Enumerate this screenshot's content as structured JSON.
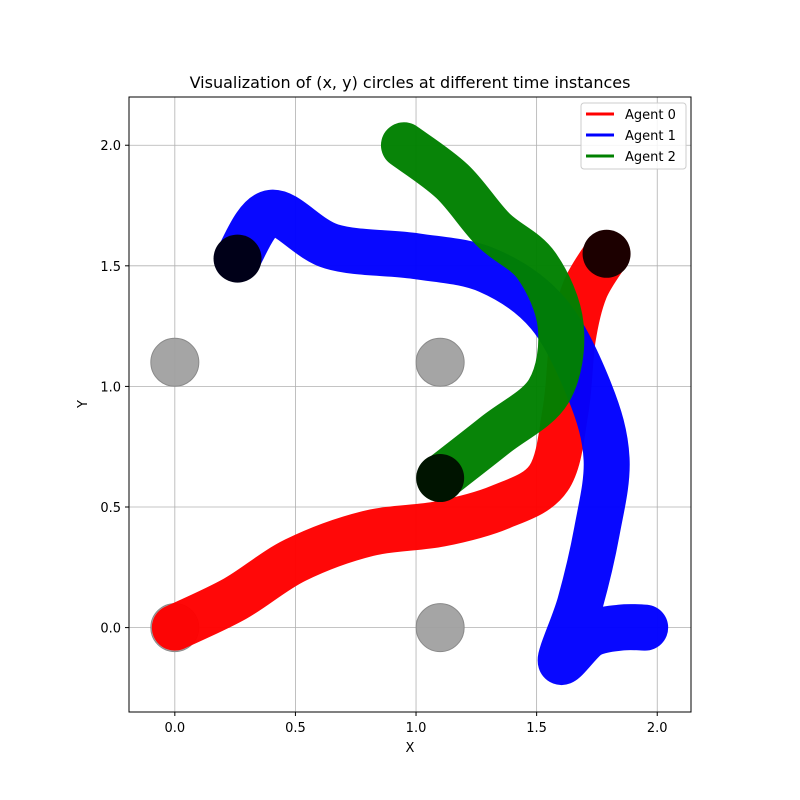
{
  "chart_data": {
    "type": "line",
    "title": "Visualization of (x, y) circles at different time instances",
    "xlabel": "X",
    "ylabel": "Y",
    "xlim": [
      -0.19,
      2.14
    ],
    "ylim": [
      -0.35,
      2.2
    ],
    "xticks": [
      0.0,
      0.5,
      1.0,
      1.5,
      2.0
    ],
    "yticks": [
      0.0,
      0.5,
      1.0,
      1.5,
      2.0
    ],
    "xtick_labels": [
      "0.0",
      "0.5",
      "1.0",
      "1.5",
      "2.0"
    ],
    "ytick_labels": [
      "0.0",
      "0.5",
      "1.0",
      "1.5",
      "2.0"
    ],
    "grid": true,
    "legend_position": "top-right",
    "series": [
      {
        "name": "Agent 0",
        "color": "#ff0000",
        "points": [
          [
            0.0,
            0.0
          ],
          [
            0.25,
            0.12
          ],
          [
            0.5,
            0.28
          ],
          [
            0.8,
            0.39
          ],
          [
            1.1,
            0.43
          ],
          [
            1.35,
            0.5
          ],
          [
            1.55,
            0.62
          ],
          [
            1.62,
            0.9
          ],
          [
            1.65,
            1.2
          ],
          [
            1.7,
            1.4
          ],
          [
            1.79,
            1.55
          ]
        ]
      },
      {
        "name": "Agent 1",
        "color": "#0000ff",
        "points": [
          [
            0.26,
            1.53
          ],
          [
            0.4,
            1.72
          ],
          [
            0.65,
            1.58
          ],
          [
            1.0,
            1.54
          ],
          [
            1.3,
            1.48
          ],
          [
            1.55,
            1.3
          ],
          [
            1.72,
            0.98
          ],
          [
            1.79,
            0.7
          ],
          [
            1.75,
            0.4
          ],
          [
            1.68,
            0.1
          ],
          [
            1.6,
            -0.14
          ],
          [
            1.72,
            -0.03
          ],
          [
            1.85,
            0.0
          ],
          [
            1.95,
            0.0
          ]
        ]
      },
      {
        "name": "Agent 2",
        "color": "#008000",
        "points": [
          [
            0.95,
            2.0
          ],
          [
            1.15,
            1.85
          ],
          [
            1.32,
            1.65
          ],
          [
            1.5,
            1.5
          ],
          [
            1.6,
            1.25
          ],
          [
            1.55,
            0.98
          ],
          [
            1.33,
            0.8
          ],
          [
            1.1,
            0.62
          ]
        ]
      }
    ],
    "end_markers": [
      {
        "x": 1.79,
        "y": 1.55,
        "color": "#1c0000"
      },
      {
        "x": 0.26,
        "y": 1.53,
        "color": "#000018"
      },
      {
        "x": 1.1,
        "y": 0.62,
        "color": "#001400"
      }
    ],
    "obstacles": [
      {
        "x": 0.0,
        "y": 1.1
      },
      {
        "x": 1.1,
        "y": 1.1
      },
      {
        "x": 0.0,
        "y": 0.0
      },
      {
        "x": 1.1,
        "y": 0.0
      }
    ],
    "obstacle_color": "#a0a0a0"
  }
}
